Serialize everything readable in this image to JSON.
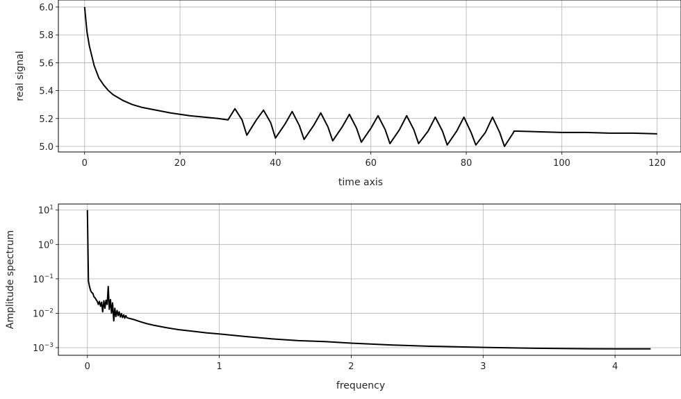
{
  "chart_data": [
    {
      "type": "line",
      "xlabel": "time axis",
      "ylabel": "real signal",
      "xlim": [
        -5.5,
        125
      ],
      "ylim": [
        4.96,
        6.05
      ],
      "xticks": [
        0,
        20,
        40,
        60,
        80,
        100,
        120
      ],
      "xtick_labels": [
        "0",
        "20",
        "40",
        "60",
        "80",
        "100",
        "120"
      ],
      "yticks": [
        5.0,
        5.2,
        5.4,
        5.6,
        5.8,
        6.0
      ],
      "ytick_labels": [
        "5.0",
        "5.2",
        "5.4",
        "5.6",
        "5.8",
        "6.0"
      ],
      "grid": true,
      "line_color": "#000000",
      "series": [
        {
          "x": [
            0,
            0.5,
            1,
            2,
            3,
            4,
            5,
            6,
            8,
            10,
            12,
            15,
            18,
            20,
            22,
            25,
            28,
            30,
            30.05,
            31.5,
            33,
            34,
            36,
            37.5,
            39,
            40,
            42,
            43.5,
            45,
            46,
            48,
            49.5,
            51,
            52,
            54,
            55.5,
            57,
            58,
            60,
            61.5,
            63,
            64,
            66,
            67.5,
            69,
            70,
            72,
            73.5,
            75,
            76,
            78,
            79.5,
            81,
            82,
            84,
            85.5,
            87,
            88,
            89.9,
            90,
            95,
            100,
            105,
            110,
            115,
            120
          ],
          "y": [
            6.0,
            5.82,
            5.72,
            5.58,
            5.49,
            5.44,
            5.4,
            5.37,
            5.33,
            5.3,
            5.28,
            5.26,
            5.24,
            5.23,
            5.22,
            5.21,
            5.2,
            5.19,
            5.19,
            5.27,
            5.19,
            5.08,
            5.19,
            5.26,
            5.17,
            5.06,
            5.16,
            5.25,
            5.15,
            5.05,
            5.15,
            5.24,
            5.14,
            5.04,
            5.14,
            5.23,
            5.13,
            5.03,
            5.13,
            5.22,
            5.12,
            5.02,
            5.12,
            5.22,
            5.12,
            5.02,
            5.11,
            5.21,
            5.11,
            5.01,
            5.11,
            5.21,
            5.1,
            5.01,
            5.1,
            5.21,
            5.1,
            5.0,
            5.1,
            5.11,
            5.105,
            5.1,
            5.1,
            5.095,
            5.095,
            5.09
          ]
        }
      ]
    },
    {
      "type": "line",
      "xlabel": "frequency",
      "ylabel": "Amplitude spectrum",
      "yscale": "log",
      "xlim": [
        -0.22,
        4.5
      ],
      "ylim": [
        0.0006,
        15
      ],
      "xticks": [
        0,
        1,
        2,
        3,
        4
      ],
      "xtick_labels": [
        "0",
        "1",
        "2",
        "3",
        "4"
      ],
      "yticks": [
        0.001,
        0.01,
        0.1,
        1,
        10
      ],
      "ytick_labels": [
        [
          "10",
          "−3"
        ],
        [
          "10",
          "−2"
        ],
        [
          "10",
          "−1"
        ],
        [
          "10",
          "0"
        ],
        [
          "10",
          "1"
        ]
      ],
      "grid": true,
      "line_color": "#000000",
      "series": [
        {
          "x": [
            0,
            0.008,
            0.016,
            0.025,
            0.033,
            0.041,
            0.05,
            0.058,
            0.066,
            0.075,
            0.083,
            0.091,
            0.1,
            0.108,
            0.116,
            0.125,
            0.133,
            0.141,
            0.15,
            0.158,
            0.166,
            0.175,
            0.183,
            0.191,
            0.2,
            0.208,
            0.216,
            0.225,
            0.233,
            0.241,
            0.25,
            0.258,
            0.266,
            0.275,
            0.283,
            0.291,
            0.3,
            0.35,
            0.4,
            0.45,
            0.5,
            0.6,
            0.7,
            0.8,
            0.9,
            1.0,
            1.2,
            1.4,
            1.6,
            1.8,
            2.0,
            2.3,
            2.6,
            3.0,
            3.4,
            3.8,
            4.2,
            4.27
          ],
          "y": [
            10,
            0.085,
            0.06,
            0.045,
            0.04,
            0.038,
            0.03,
            0.028,
            0.025,
            0.022,
            0.018,
            0.022,
            0.016,
            0.021,
            0.011,
            0.023,
            0.014,
            0.024,
            0.018,
            0.06,
            0.013,
            0.025,
            0.01,
            0.02,
            0.006,
            0.014,
            0.008,
            0.012,
            0.0085,
            0.011,
            0.0078,
            0.0098,
            0.0075,
            0.009,
            0.0072,
            0.0085,
            0.0074,
            0.0066,
            0.0057,
            0.005,
            0.0045,
            0.0038,
            0.0033,
            0.003,
            0.0027,
            0.0025,
            0.0021,
            0.0018,
            0.0016,
            0.0015,
            0.00135,
            0.0012,
            0.0011,
            0.00102,
            0.00096,
            0.00093,
            0.00092,
            0.00092
          ]
        }
      ]
    }
  ]
}
